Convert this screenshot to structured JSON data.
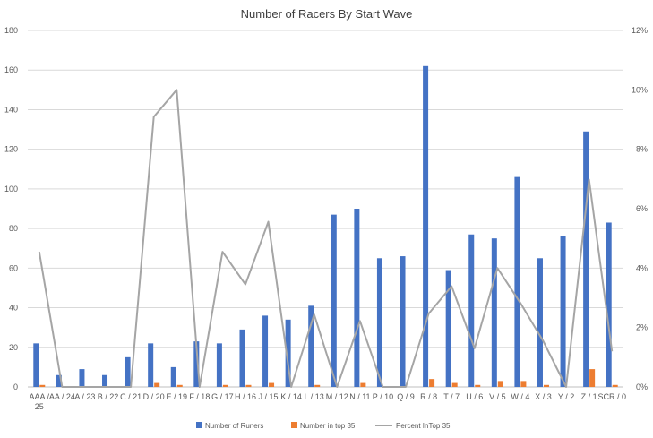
{
  "chart_data": {
    "type": "bar",
    "title": "Number of Racers By Start Wave",
    "categories": [
      "AAA / 25",
      "AA / 24",
      "A / 23",
      "B / 22",
      "C / 21",
      "D / 20",
      "E / 19",
      "F / 18",
      "G / 17",
      "H / 16",
      "J / 15",
      "K / 14",
      "L / 13",
      "M / 12",
      "N / 11",
      "P / 10",
      "Q / 9",
      "R / 8",
      "T / 7",
      "U / 6",
      "V / 5",
      "W / 4",
      "X / 3",
      "Y / 2",
      "Z / 1",
      "SCR / 0"
    ],
    "ylim": [
      0,
      180
    ],
    "y_ticks": [
      "0",
      "20",
      "40",
      "60",
      "80",
      "100",
      "120",
      "140",
      "160",
      "180"
    ],
    "y2lim": [
      0,
      0.12
    ],
    "y2_ticks": [
      "0%",
      "2%",
      "4%",
      "6%",
      "8%",
      "10%",
      "12%"
    ],
    "grid": true,
    "legend_position": "bottom",
    "series": [
      {
        "name": "Number of Runers",
        "kind": "bar",
        "axis": "left",
        "color": "#4472C4",
        "values": [
          22,
          6,
          9,
          6,
          15,
          22,
          10,
          23,
          22,
          29,
          36,
          34,
          41,
          87,
          90,
          65,
          66,
          162,
          59,
          77,
          75,
          106,
          65,
          76,
          129,
          83
        ]
      },
      {
        "name": "Number in top 35",
        "kind": "bar",
        "axis": "left",
        "color": "#ED7D31",
        "values": [
          1,
          0,
          0,
          0,
          0,
          2,
          1,
          0,
          1,
          1,
          2,
          0,
          1,
          0,
          2,
          0,
          0,
          4,
          2,
          1,
          3,
          3,
          1,
          0,
          9,
          1
        ]
      },
      {
        "name": "Percent InTop 35",
        "kind": "line",
        "axis": "right",
        "color": "#A5A5A5",
        "values": [
          0.0455,
          0,
          0,
          0,
          0,
          0.0909,
          0.1,
          0,
          0.0455,
          0.0345,
          0.0556,
          0,
          0.0244,
          0,
          0.0222,
          0,
          0,
          0.0247,
          0.0339,
          0.013,
          0.04,
          0.0283,
          0.0154,
          0,
          0.0698,
          0.012
        ]
      }
    ]
  }
}
